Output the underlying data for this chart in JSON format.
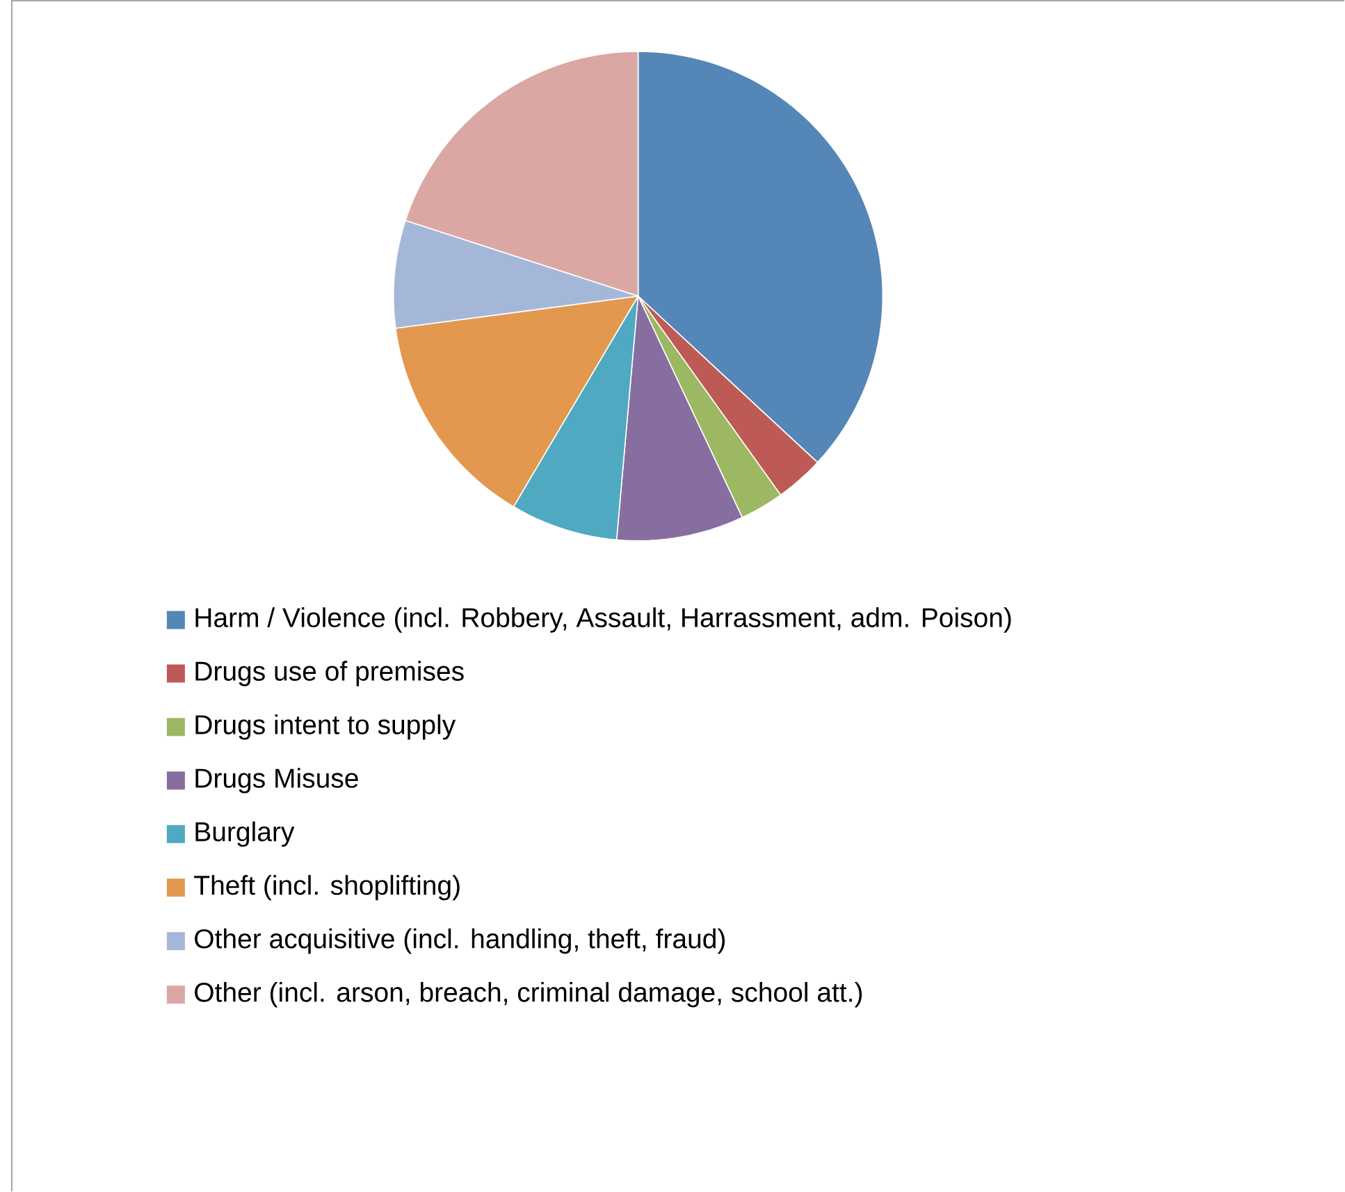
{
  "chart_data": {
    "type": "pie",
    "categories": [
      "Harm / Violence (incl. Robbery, Assault, Harrassment, adm. Poison)",
      "Drugs use of premises",
      "Drugs intent to supply",
      "Drugs Misuse",
      "Burglary",
      "Theft (incl. shoplifting)",
      "Other acquisitive (incl. handling, theft, fraud)",
      "Other (incl. arson, breach, criminal damage, school att.)"
    ],
    "values": [
      36.9,
      3.2,
      2.9,
      8.4,
      7.1,
      14.4,
      7.1,
      20.0
    ],
    "colors": [
      "#5586b8",
      "#be5a55",
      "#9cb862",
      "#876ea0",
      "#4fa9c1",
      "#e3984f",
      "#a5b7d9",
      "#dba7a4"
    ],
    "legend": "bottom"
  }
}
